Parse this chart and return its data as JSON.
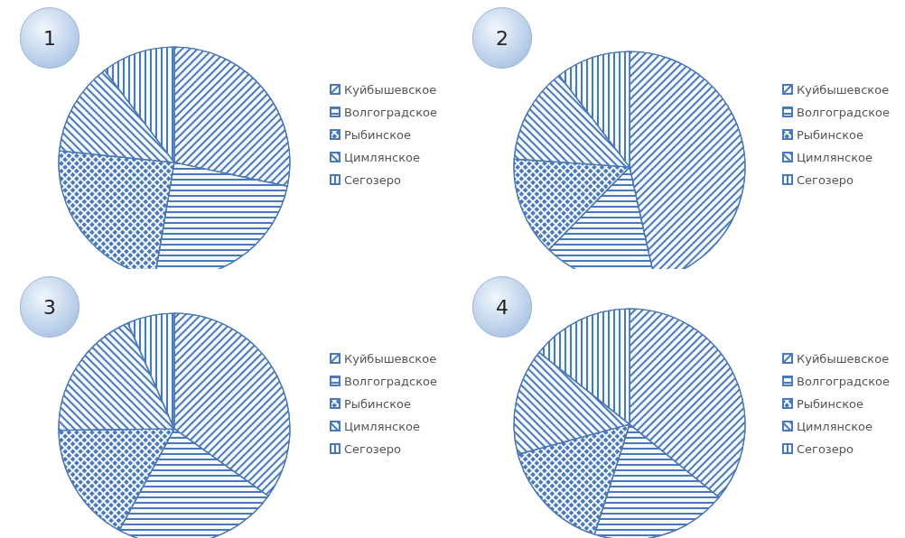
{
  "chart_data": [
    {
      "type": "pie",
      "title": "1",
      "categories": [
        "Куйбышевское",
        "Волгоградское",
        "Рыбинское",
        "Цимлянское",
        "Сегозеро"
      ],
      "values": [
        28.3,
        24.4,
        23.9,
        13.1,
        10.3
      ],
      "colors": [
        "#4a78b8",
        "#4a78b8",
        "#4a78b8",
        "#4a78b8",
        "#4a78b8"
      ],
      "legend": "right"
    },
    {
      "type": "pie",
      "title": "2",
      "categories": [
        "Куйбышевское",
        "Волгоградское",
        "Рыбинское",
        "Цимлянское",
        "Сегозеро"
      ],
      "values": [
        46.5,
        15.8,
        13.8,
        13.5,
        10.4
      ],
      "colors": [
        "#4a78b8",
        "#4a78b8",
        "#4a78b8",
        "#4a78b8",
        "#4a78b8"
      ],
      "legend": "right"
    },
    {
      "type": "pie",
      "title": "3",
      "categories": [
        "Куйбышевское",
        "Волгоградское",
        "Рыбинское",
        "Цимлянское",
        "Сегозеро"
      ],
      "values": [
        34.9,
        23.0,
        16.9,
        18.6,
        6.6
      ],
      "colors": [
        "#4a78b8",
        "#4a78b8",
        "#4a78b8",
        "#4a78b8",
        "#4a78b8"
      ],
      "legend": "right"
    },
    {
      "type": "pie",
      "title": "4",
      "categories": [
        "Куйбышевское",
        "Волгоградское",
        "Рыбинское",
        "Цимлянское",
        "Сегозеро"
      ],
      "values": [
        35.9,
        19.0,
        15.9,
        14.9,
        14.3
      ],
      "colors": [
        "#4a78b8",
        "#4a78b8",
        "#4a78b8",
        "#4a78b8",
        "#4a78b8"
      ],
      "legend": "right"
    }
  ]
}
